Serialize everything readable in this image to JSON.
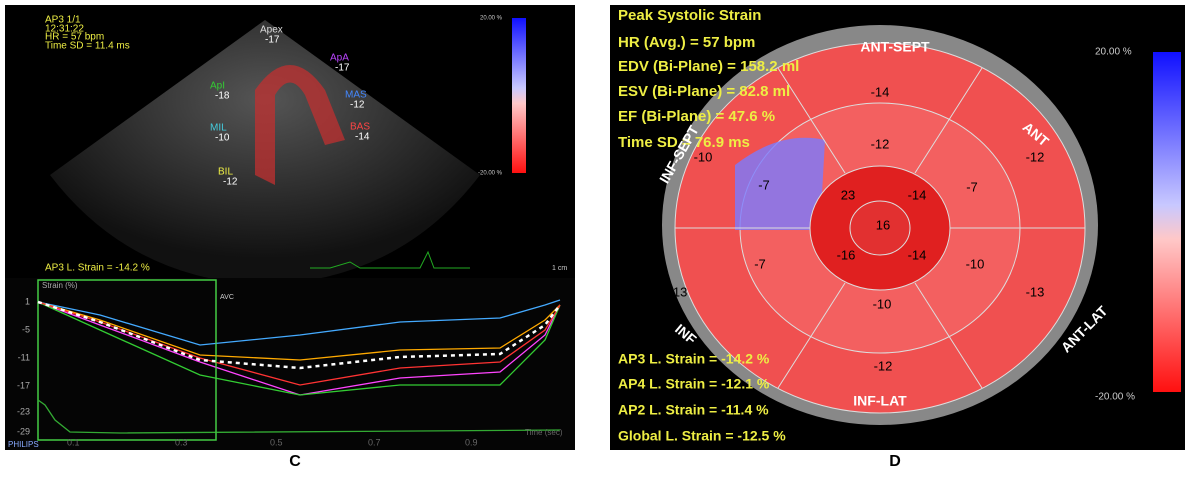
{
  "panel_c": {
    "label": "C",
    "header": [
      "AP3 1/1",
      "12:31:22",
      "HR = 57 bpm",
      "Time SD = 11.4 ms"
    ],
    "scale": [
      "20.00 %",
      "-20.00 %"
    ],
    "segments": [
      {
        "name": "Apex",
        "value": "-17"
      },
      {
        "name": "ApA",
        "value": "-17"
      },
      {
        "name": "MAS",
        "value": "-12"
      },
      {
        "name": "BAS",
        "value": "-14"
      },
      {
        "name": "ApI",
        "value": "-18"
      },
      {
        "name": "MIL",
        "value": "-10"
      },
      {
        "name": "BIL",
        "value": "-12"
      }
    ],
    "strain": "AP3 L. Strain = -14.2 %",
    "distance": "1 cm",
    "plot_title": "Strain (%)",
    "marker": "AVC",
    "y_labels": [
      "1",
      "-5",
      "-11",
      "-17",
      "-23",
      "-29"
    ],
    "x_labels": [
      "0.1",
      "0.3",
      "0.5",
      "0.7",
      "0.9"
    ],
    "x_title": "Time (sec)",
    "brand": "PHILIPS"
  },
  "panel_d": {
    "label": "D",
    "info": [
      "Peak Systolic Strain",
      "HR (Avg.) = 57 bpm",
      "EDV (Bi-Plane) = 158.2 ml",
      "ESV (Bi-Plane) = 82.8 ml",
      "EF (Bi-Plane) = 47.6 %",
      "Time SD = 76.9 ms"
    ],
    "walls": [
      "ANT-SEPT",
      "ANT",
      "ANT-LAT",
      "INF-LAT",
      "INF",
      "INF-SEPT"
    ],
    "segment_values": [
      "-14",
      "-12",
      "-12",
      "-10",
      "-7",
      "-7",
      "23",
      "-14",
      "16",
      "-16",
      "-14",
      "-10",
      "-7",
      "-13",
      "-13",
      "-10",
      "-12"
    ],
    "strains": [
      "AP3 L. Strain = -14.2 %",
      "AP4 L. Strain = -12.1 %",
      "AP2 L. Strain = -11.4 %",
      "Global L. Strain = -12.5 %"
    ],
    "scale": [
      "20.00 %",
      "-20.00 %"
    ]
  }
}
